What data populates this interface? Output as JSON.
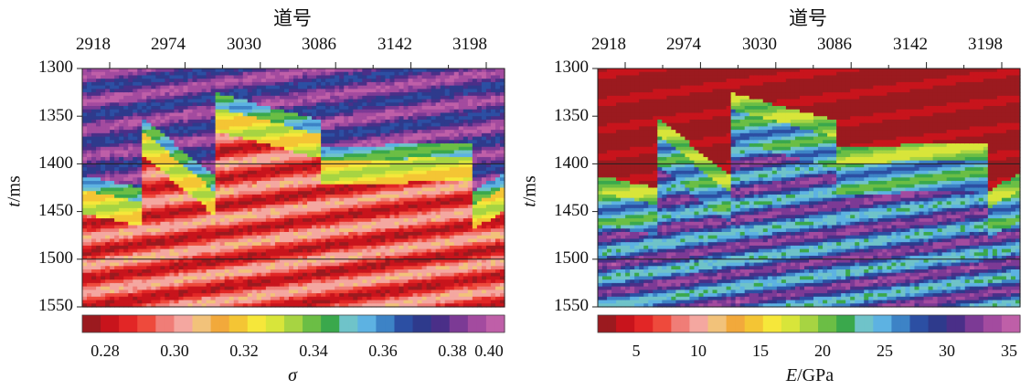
{
  "chart_data": [
    {
      "type": "heatmap",
      "title": "道号",
      "x_ticks": [
        "2918",
        "2974",
        "3030",
        "3086",
        "3142",
        "3198"
      ],
      "y_ticks": [
        "1300",
        "1350",
        "1400",
        "1450",
        "1500",
        "1550"
      ],
      "ylim": [
        1300,
        1550
      ],
      "ylabel_var": "t",
      "ylabel_unit": "/ms",
      "colorbar": {
        "label": "σ",
        "ticks": [
          "0.28",
          "0.30",
          "0.32",
          "0.34",
          "0.36",
          "0.38",
          "0.40"
        ],
        "range": [
          0.27,
          0.405
        ]
      },
      "gridlines_y": [
        1400,
        1500
      ]
    },
    {
      "type": "heatmap",
      "title": "道号",
      "x_ticks": [
        "2918",
        "2974",
        "3030",
        "3086",
        "3142",
        "3198"
      ],
      "y_ticks": [
        "1300",
        "1350",
        "1400",
        "1450",
        "1500",
        "1550"
      ],
      "ylim": [
        1300,
        1550
      ],
      "ylabel_var": "t",
      "ylabel_unit": "/ms",
      "colorbar": {
        "label_var": "E",
        "label_unit": "/GPa",
        "ticks": [
          "5",
          "10",
          "15",
          "20",
          "25",
          "30",
          "35"
        ],
        "range": [
          3,
          37
        ]
      },
      "gridlines_y": [
        1400,
        1500
      ]
    }
  ],
  "palette": [
    "#9b1a1f",
    "#c8141c",
    "#e22626",
    "#ee4a3c",
    "#f07d77",
    "#f4a7a0",
    "#f2c27a",
    "#f2a93b",
    "#f4c534",
    "#f6e73a",
    "#d8e53a",
    "#a7d442",
    "#6bbe45",
    "#3aa84c",
    "#6fc3c9",
    "#5db2e2",
    "#3d83c6",
    "#2c4fa3",
    "#2e3a8c",
    "#4a2f88",
    "#7c3a95",
    "#a34b9f",
    "#bf5fa8"
  ]
}
